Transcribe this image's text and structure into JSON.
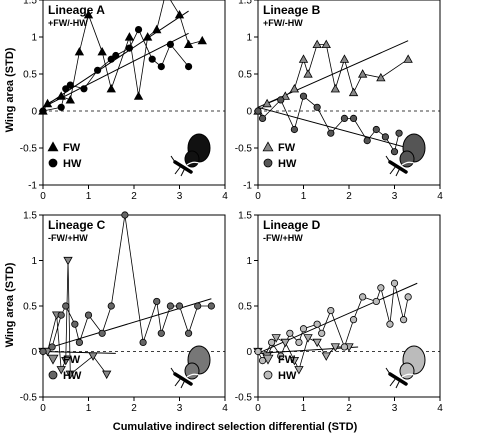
{
  "chart_data": [
    {
      "type": "scatter",
      "title": "Lineage A",
      "subtitle": "+FW/-HW",
      "xlim": [
        0,
        4
      ],
      "ylim": [
        -1,
        1.5
      ],
      "xticks": [
        "0",
        "1",
        "2",
        "3",
        "4"
      ],
      "yticks": [
        "-1",
        "-0.5",
        "0",
        "0.5",
        "1",
        "1.5"
      ],
      "series": [
        {
          "name": "FW",
          "marker": "triangle",
          "color": "#000000",
          "x": [
            0,
            0.1,
            0.4,
            0.6,
            0.8,
            1.0,
            1.3,
            1.5,
            1.9,
            2.1,
            2.3,
            2.5,
            2.7,
            3.0,
            3.2,
            3.5
          ],
          "y": [
            0,
            0.1,
            0.2,
            0.15,
            0.8,
            1.3,
            0.8,
            0.3,
            1.0,
            0.2,
            1.0,
            1.1,
            1.6,
            1.3,
            0.9,
            0.95
          ]
        },
        {
          "name": "HW",
          "marker": "circle",
          "color": "#000000",
          "x": [
            0,
            0.4,
            0.5,
            0.6,
            0.9,
            1.2,
            1.5,
            1.6,
            1.9,
            2.1,
            2.4,
            2.6,
            2.8,
            3.2
          ],
          "y": [
            0,
            0.05,
            0.3,
            0.35,
            0.3,
            0.55,
            0.7,
            0.75,
            0.85,
            1.1,
            0.7,
            0.6,
            0.9,
            0.6
          ]
        }
      ],
      "trendlines": [
        {
          "series": "FW",
          "x": [
            0,
            3.2
          ],
          "y": [
            0.05,
            1.35
          ]
        },
        {
          "series": "HW",
          "x": [
            0,
            3.2
          ],
          "y": [
            0.05,
            1.05
          ]
        }
      ],
      "legend": "bottom-left",
      "insect_color": "#111111"
    },
    {
      "type": "scatter",
      "title": "Lineage B",
      "subtitle": "+FW/-HW",
      "xlim": [
        0,
        4
      ],
      "ylim": [
        -1,
        1.5
      ],
      "xticks": [
        "0",
        "1",
        "2",
        "3",
        "4"
      ],
      "yticks": [
        "-1",
        "-0.5",
        "0",
        "0.5",
        "1",
        "1.5"
      ],
      "series": [
        {
          "name": "FW",
          "marker": "triangle",
          "color": "#888888",
          "x": [
            0,
            0.2,
            0.6,
            0.8,
            1.0,
            1.1,
            1.3,
            1.5,
            1.7,
            1.9,
            2.1,
            2.3,
            2.7,
            3.3
          ],
          "y": [
            0,
            0.1,
            0.2,
            0.3,
            0.7,
            0.5,
            0.9,
            0.9,
            0.3,
            0.7,
            0.25,
            0.5,
            0.45,
            0.7
          ]
        },
        {
          "name": "HW",
          "marker": "circle",
          "color": "#555555",
          "x": [
            0,
            0.1,
            0.5,
            0.8,
            1.0,
            1.3,
            1.6,
            1.9,
            2.1,
            2.4,
            2.6,
            2.8,
            3.0,
            3.1
          ],
          "y": [
            0,
            -0.1,
            0.15,
            -0.25,
            0.2,
            0.05,
            -0.3,
            -0.1,
            -0.1,
            -0.4,
            -0.25,
            -0.35,
            -0.55,
            -0.3
          ]
        }
      ],
      "trendlines": [
        {
          "series": "FW",
          "x": [
            0,
            3.3
          ],
          "y": [
            0.05,
            0.95
          ]
        },
        {
          "series": "HW",
          "x": [
            0,
            3.3
          ],
          "y": [
            0.05,
            -0.5
          ]
        }
      ],
      "legend": "bottom-left",
      "insect_color": "#555555"
    },
    {
      "type": "scatter",
      "title": "Lineage C",
      "subtitle": "-FW/+HW",
      "xlim": [
        0,
        4
      ],
      "ylim": [
        -0.5,
        1.5
      ],
      "xticks": [
        "0",
        "1",
        "2",
        "3",
        "4"
      ],
      "yticks": [
        "-0.5",
        "0",
        "0.5",
        "1",
        "1.5"
      ],
      "series": [
        {
          "name": "FW",
          "marker": "triangle-down",
          "color": "#888888",
          "x": [
            0,
            0.1,
            0.3,
            0.4,
            0.5,
            0.55,
            0.6,
            1.1,
            1.4
          ],
          "y": [
            0,
            0,
            0.4,
            -0.2,
            -0.1,
            1.0,
            -0.25,
            -0.05,
            -0.25
          ]
        },
        {
          "name": "HW",
          "marker": "circle",
          "color": "#666666",
          "x": [
            0,
            0.2,
            0.4,
            0.5,
            0.7,
            0.8,
            1.0,
            1.3,
            1.5,
            1.8,
            2.2,
            2.5,
            2.6,
            2.8,
            3.0,
            3.2,
            3.4,
            3.7
          ],
          "y": [
            0,
            0.05,
            0.4,
            0.5,
            0.3,
            0.1,
            0.4,
            0.2,
            0.5,
            1.5,
            0.1,
            0.55,
            0.2,
            0.5,
            0.5,
            0.2,
            0.5,
            0.5
          ]
        }
      ],
      "trendlines": [
        {
          "series": "FW",
          "x": [
            0,
            1.6
          ],
          "y": [
            0,
            -0.02
          ]
        },
        {
          "series": "HW",
          "x": [
            0,
            3.7
          ],
          "y": [
            0.02,
            0.58
          ]
        }
      ],
      "legend": "bottom-left",
      "insect_color": "#777777"
    },
    {
      "type": "scatter",
      "title": "Lineage D",
      "subtitle": "-FW/+HW",
      "xlim": [
        0,
        4
      ],
      "ylim": [
        -0.5,
        1.5
      ],
      "xticks": [
        "0",
        "1",
        "2",
        "3",
        "4"
      ],
      "yticks": [
        "-0.5",
        "0",
        "0.5",
        "1",
        "1.5"
      ],
      "series": [
        {
          "name": "FW",
          "marker": "triangle-down",
          "color": "#aaaaaa",
          "x": [
            0,
            0.2,
            0.4,
            0.6,
            0.8,
            0.9,
            1.1,
            1.3,
            1.5,
            1.7,
            2.0
          ],
          "y": [
            0,
            -0.05,
            0.15,
            0.1,
            -0.1,
            -0.2,
            0.15,
            0.1,
            -0.05,
            0.05,
            0.05
          ]
        },
        {
          "name": "HW",
          "marker": "circle",
          "color": "#bbbbbb",
          "x": [
            0,
            0.1,
            0.3,
            0.5,
            0.7,
            0.9,
            1.0,
            1.3,
            1.4,
            1.6,
            1.9,
            2.1,
            2.3,
            2.6,
            2.7,
            2.9,
            3.0,
            3.2,
            3.3
          ],
          "y": [
            0,
            -0.1,
            0.1,
            -0.05,
            0.2,
            0.1,
            0.25,
            0.3,
            0.2,
            0.45,
            0.05,
            0.35,
            0.6,
            0.55,
            0.7,
            0.3,
            0.75,
            0.35,
            0.6
          ]
        }
      ],
      "trendlines": [
        {
          "series": "FW",
          "x": [
            0,
            2.2
          ],
          "y": [
            -0.02,
            0.05
          ]
        },
        {
          "series": "HW",
          "x": [
            0,
            3.5
          ],
          "y": [
            -0.02,
            0.75
          ]
        }
      ],
      "legend": "bottom-left",
      "insect_color": "#bbbbbb"
    }
  ],
  "labels": {
    "ylabel_top": "Wing area (STD)",
    "ylabel_bottom": "Wing area (STD)",
    "xlabel": "Cumulative indirect selection differential (STD)"
  }
}
